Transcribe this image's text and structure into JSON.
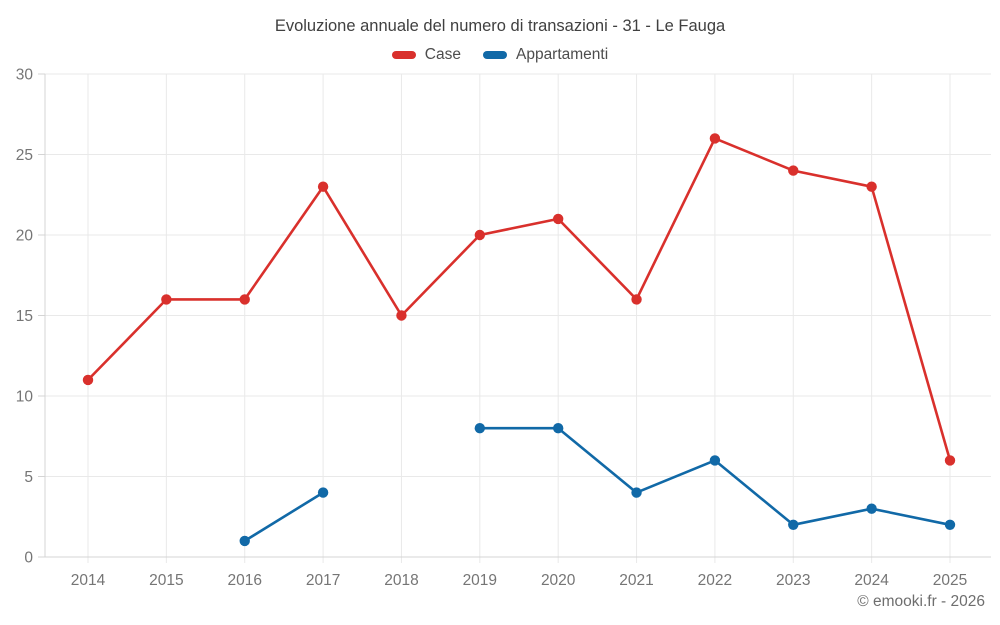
{
  "chart_data": {
    "type": "line",
    "title": "Evoluzione annuale del numero di transazioni - 31 - Le Fauga",
    "categories": [
      "2014",
      "2015",
      "2016",
      "2017",
      "2018",
      "2019",
      "2020",
      "2021",
      "2022",
      "2023",
      "2024",
      "2025"
    ],
    "series": [
      {
        "name": "Case",
        "color": "#d9302c",
        "values": [
          11,
          16,
          16,
          23,
          15,
          20,
          21,
          16,
          26,
          24,
          23,
          6
        ]
      },
      {
        "name": "Appartamenti",
        "color": "#1169a7",
        "values": [
          null,
          null,
          1,
          4,
          null,
          8,
          8,
          4,
          6,
          2,
          3,
          2
        ]
      }
    ],
    "xlabel": "",
    "ylabel": "",
    "ylim": [
      0,
      30
    ],
    "yticks": [
      0,
      5,
      10,
      15,
      20,
      25,
      30
    ],
    "grid": true,
    "legend_position": "top",
    "footer": "© emooki.fr - 2026"
  },
  "style": {
    "grid_color": "#e9e9e9",
    "axis_color": "#d4d4d4",
    "tick_label_color": "#757575"
  }
}
